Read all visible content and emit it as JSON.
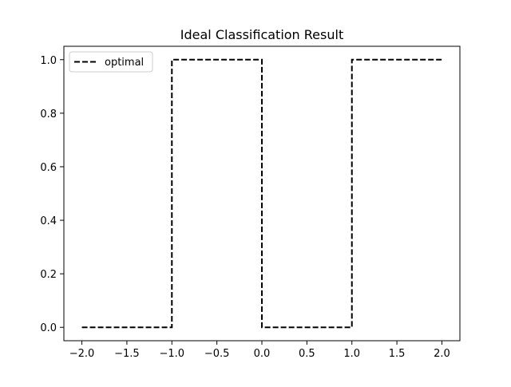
{
  "chart_data": {
    "type": "line",
    "title": "Ideal Classification Result",
    "xlabel": "",
    "ylabel": "",
    "xlim": [
      -2.2,
      2.2
    ],
    "ylim": [
      -0.05,
      1.05
    ],
    "x_ticks": [
      -2.0,
      -1.5,
      -1.0,
      -0.5,
      0.0,
      0.5,
      1.0,
      1.5,
      2.0
    ],
    "x_tick_labels": [
      "−2.0",
      "−1.5",
      "−1.0",
      "−0.5",
      "0.0",
      "0.5",
      "1.0",
      "1.5",
      "2.0"
    ],
    "y_ticks": [
      0.0,
      0.2,
      0.4,
      0.6,
      0.8,
      1.0
    ],
    "y_tick_labels": [
      "0.0",
      "0.2",
      "0.4",
      "0.6",
      "0.8",
      "1.0"
    ],
    "grid": false,
    "legend_position": "top-left",
    "series": [
      {
        "name": "optimal",
        "color": "#000000",
        "line_style": "dashed",
        "x": [
          -2.0,
          -1.0,
          -1.0,
          0.0,
          0.0,
          1.0,
          1.0,
          2.0
        ],
        "y": [
          0,
          0,
          1,
          1,
          0,
          0,
          1,
          1
        ]
      }
    ]
  }
}
